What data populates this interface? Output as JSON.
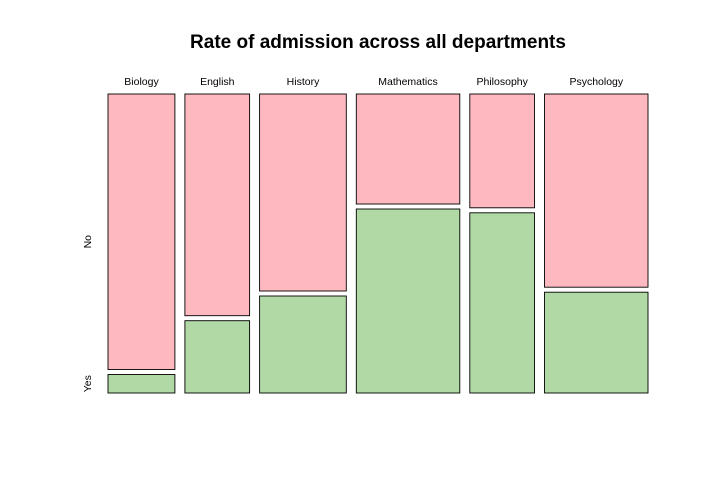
{
  "chart_data": {
    "type": "mosaic",
    "title": "Rate of admission across all departments",
    "categories": [
      "Biology",
      "English",
      "History",
      "Mathematics",
      "Philosophy",
      "Psychology"
    ],
    "widths": [
      0.183,
      0.177,
      0.237,
      0.283,
      0.177,
      0.283
    ],
    "levels": [
      "No",
      "Yes"
    ],
    "yes_fraction": [
      0.063,
      0.246,
      0.33,
      0.626,
      0.613,
      0.343
    ],
    "colors": {
      "No": "#fdb9bf",
      "Yes": "#b0d9a5"
    }
  }
}
